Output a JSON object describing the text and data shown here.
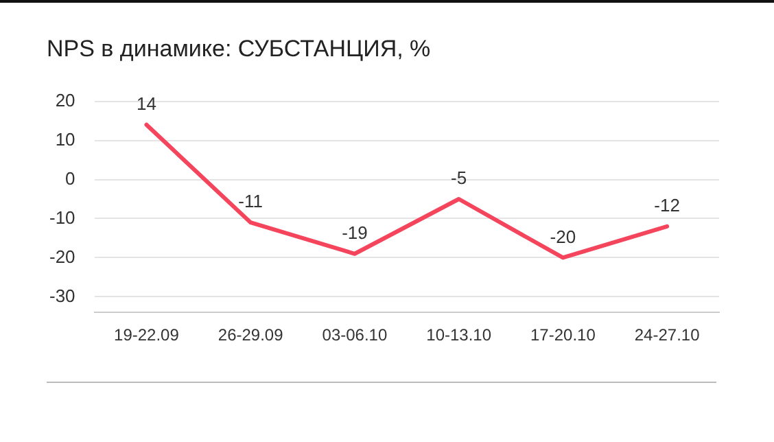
{
  "chart_data": {
    "type": "line",
    "title": "NPS в динамике: СУБСТАНЦИЯ, %",
    "categories": [
      "19-22.09",
      "26-29.09",
      "03-06.10",
      "10-13.10",
      "17-20.10",
      "24-27.10"
    ],
    "series": [
      {
        "color": "#f5455c",
        "values": [
          14,
          -11,
          -19,
          -5,
          -20,
          -12
        ]
      }
    ],
    "ylim": [
      -34,
      20
    ],
    "yticks": [
      -30,
      -20,
      -10,
      0,
      10,
      20
    ],
    "grid": "y",
    "legend": false,
    "marker": "none",
    "line_style": "solid",
    "data_labels": true
  }
}
